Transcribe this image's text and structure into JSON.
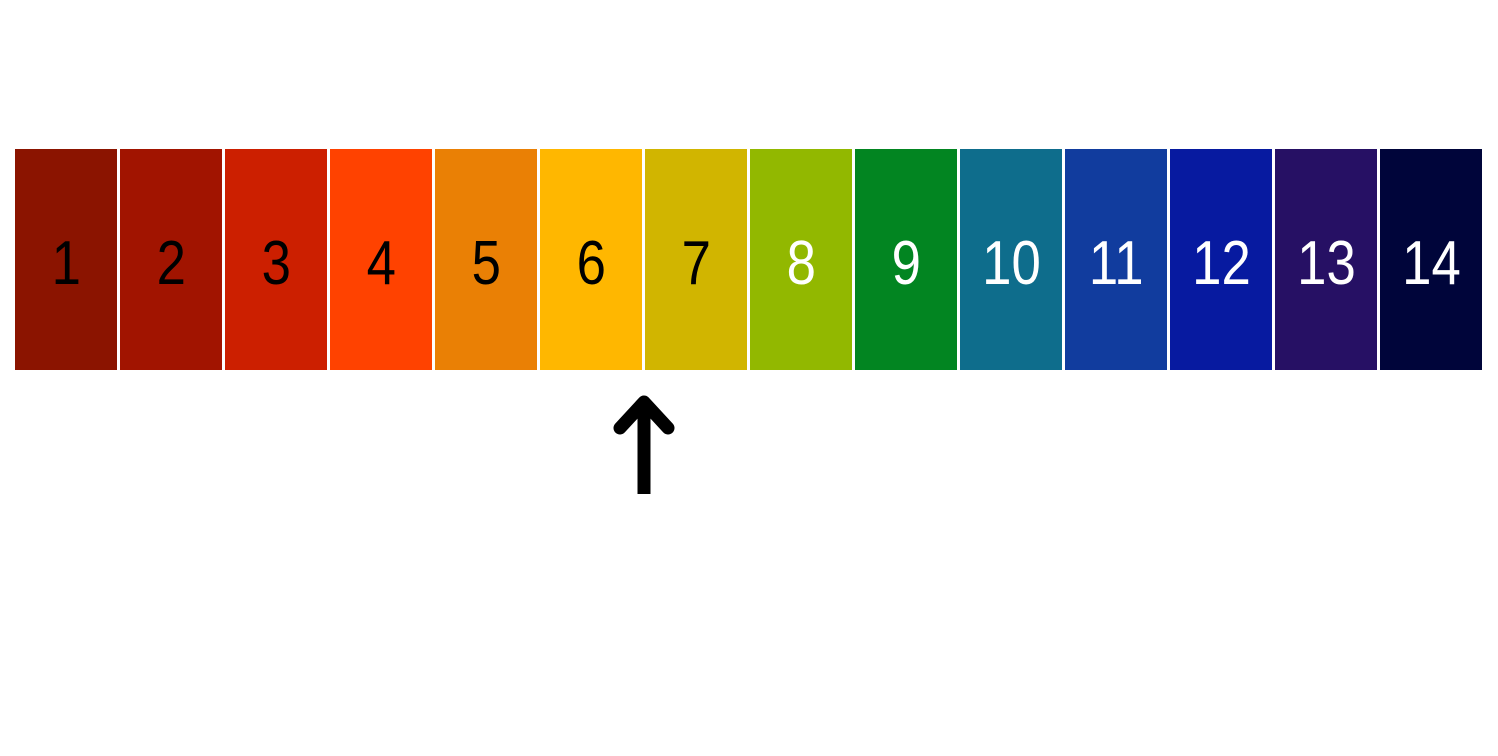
{
  "ph_scale": {
    "cells": [
      {
        "label": "1",
        "color": "#8b1400",
        "text_color": "#000000"
      },
      {
        "label": "2",
        "color": "#a11400",
        "text_color": "#000000"
      },
      {
        "label": "3",
        "color": "#cc1f00",
        "text_color": "#000000"
      },
      {
        "label": "4",
        "color": "#ff4200",
        "text_color": "#000000"
      },
      {
        "label": "5",
        "color": "#ea8005",
        "text_color": "#000000"
      },
      {
        "label": "6",
        "color": "#ffb700",
        "text_color": "#000000"
      },
      {
        "label": "7",
        "color": "#d1b500",
        "text_color": "#000000"
      },
      {
        "label": "8",
        "color": "#92b800",
        "text_color": "#ffffff"
      },
      {
        "label": "9",
        "color": "#028521",
        "text_color": "#ffffff"
      },
      {
        "label": "10",
        "color": "#0e6d8c",
        "text_color": "#ffffff"
      },
      {
        "label": "11",
        "color": "#113c9e",
        "text_color": "#ffffff"
      },
      {
        "label": "12",
        "color": "#071aa0",
        "text_color": "#ffffff"
      },
      {
        "label": "13",
        "color": "#261064",
        "text_color": "#ffffff"
      },
      {
        "label": "14",
        "color": "#00053a",
        "text_color": "#ffffff"
      }
    ],
    "indicated_value": 6.5,
    "pointer_icon": "up-arrow-icon",
    "pointer_color": "#000000"
  }
}
